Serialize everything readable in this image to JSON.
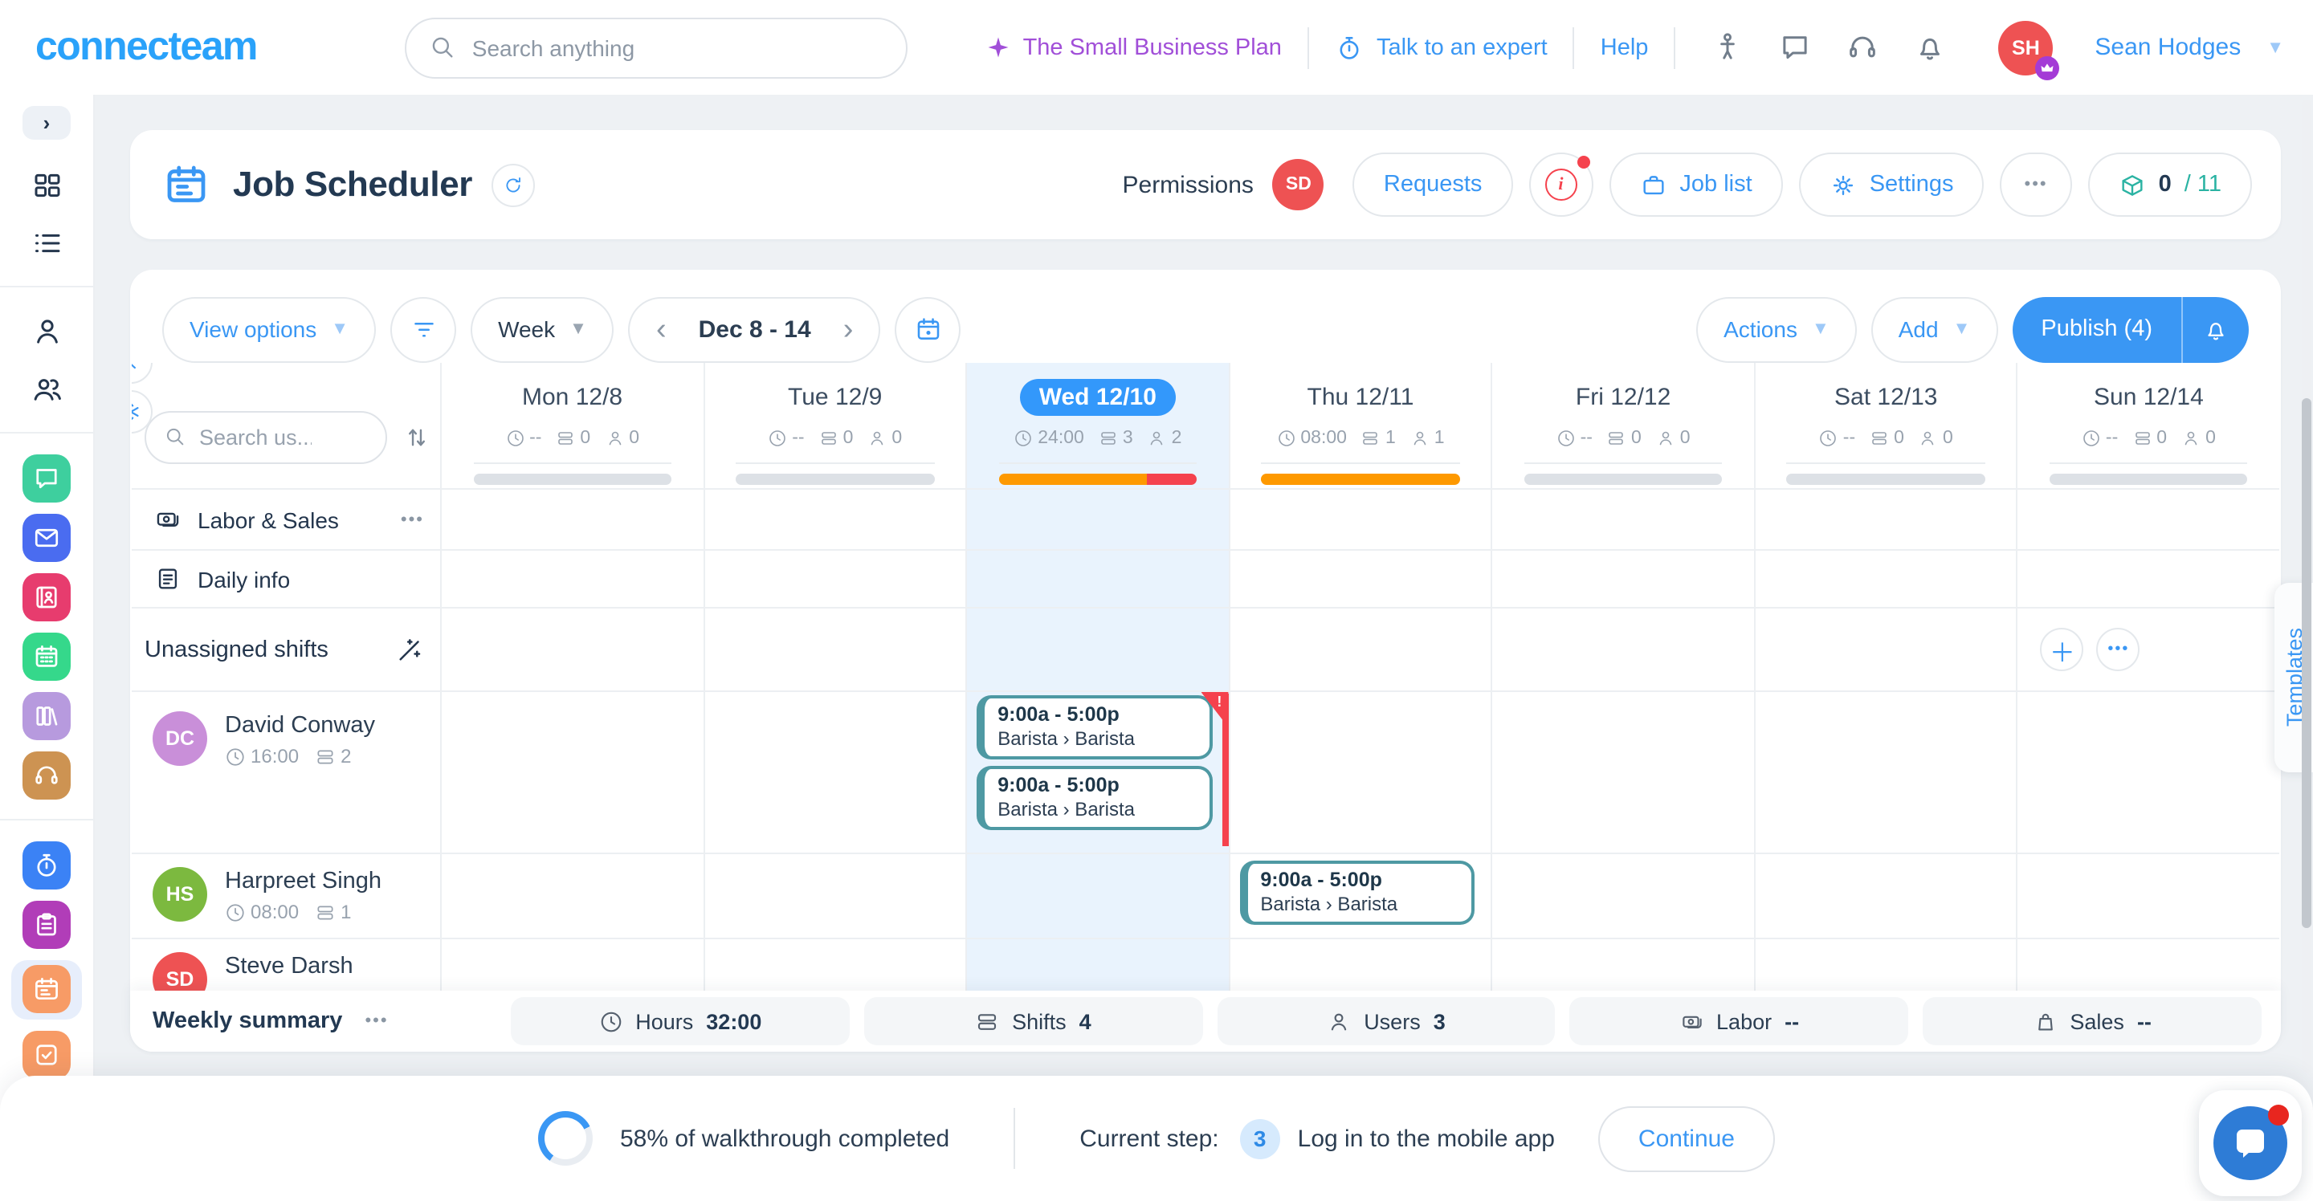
{
  "brand": {
    "logo_text": "connecteam",
    "accent": "#3a97f4",
    "logo_color": "#2aa2fa"
  },
  "topbar": {
    "search_placeholder": "Search anything",
    "plan_link": "The Small Business Plan",
    "expert_link": "Talk to an expert",
    "help_link": "Help",
    "user": {
      "initials": "SH",
      "name": "Sean Hodges",
      "avatar_color": "#ee5253",
      "badge_color": "#a43bd6"
    }
  },
  "page_header": {
    "title": "Job Scheduler",
    "permissions_label": "Permissions",
    "permissions_avatar": {
      "initials": "SD",
      "color": "#ee5253"
    },
    "requests_button": "Requests",
    "job_list_button": "Job list",
    "settings_button": "Settings",
    "more_button": "•••",
    "onboarding": {
      "count": "0",
      "total": "/ 11",
      "icon_color": "#2bb3a3"
    }
  },
  "toolbar": {
    "view_options": "View options",
    "zoom_level": "Week",
    "date_range": "Dec 8 - 14",
    "actions": "Actions",
    "add": "Add",
    "publish": "Publish (4)"
  },
  "grid": {
    "user_search_placeholder": "Search us...",
    "days": [
      {
        "label": "Mon 12/8",
        "hours": "--",
        "shifts": "0",
        "users": "0",
        "selected": false,
        "bar": [
          {
            "color": "#dde1e6",
            "width": "100%"
          }
        ]
      },
      {
        "label": "Tue 12/9",
        "hours": "--",
        "shifts": "0",
        "users": "0",
        "selected": false,
        "bar": [
          {
            "color": "#dde1e6",
            "width": "100%"
          }
        ]
      },
      {
        "label": "Wed 12/10",
        "hours": "24:00",
        "shifts": "3",
        "users": "2",
        "selected": true,
        "bar": [
          {
            "color": "#fe9900",
            "width": "75%"
          },
          {
            "color": "#f5424d",
            "width": "25%"
          }
        ]
      },
      {
        "label": "Thu 12/11",
        "hours": "08:00",
        "shifts": "1",
        "users": "1",
        "selected": false,
        "bar": [
          {
            "color": "#fe9900",
            "width": "100%"
          }
        ]
      },
      {
        "label": "Fri 12/12",
        "hours": "--",
        "shifts": "0",
        "users": "0",
        "selected": false,
        "bar": [
          {
            "color": "#dde1e6",
            "width": "100%"
          }
        ]
      },
      {
        "label": "Sat 12/13",
        "hours": "--",
        "shifts": "0",
        "users": "0",
        "selected": false,
        "bar": [
          {
            "color": "#dde1e6",
            "width": "100%"
          }
        ]
      },
      {
        "label": "Sun 12/14",
        "hours": "--",
        "shifts": "0",
        "users": "0",
        "selected": false,
        "bar": [
          {
            "color": "#dde1e6",
            "width": "100%"
          }
        ]
      }
    ],
    "section_rows": {
      "labor": "Labor & Sales",
      "labor_more": "•••",
      "daily": "Daily info",
      "unassigned": "Unassigned shifts"
    },
    "users": [
      {
        "initials": "DC",
        "name": "David Conway",
        "hours": "16:00",
        "shifts": "2",
        "color": "#c98fd9"
      },
      {
        "initials": "HS",
        "name": "Harpreet Singh",
        "hours": "08:00",
        "shifts": "1",
        "color": "#7cb93f"
      },
      {
        "initials": "SD",
        "name": "Steve Darsh",
        "hours": "",
        "shifts": "",
        "color": "#ee5253"
      }
    ],
    "shift": {
      "time": "9:00a - 5:00p",
      "role": "Barista › Barista",
      "border_color": "#4e99a3",
      "conflict_color": "#f5424d",
      "conflict_mark": "!"
    }
  },
  "summary": {
    "title": "Weekly summary",
    "more": "•••",
    "items": [
      {
        "label": "Hours",
        "value": "32:00"
      },
      {
        "label": "Shifts",
        "value": "4"
      },
      {
        "label": "Users",
        "value": "3"
      },
      {
        "label": "Labor",
        "value": "--"
      },
      {
        "label": "Sales",
        "value": "--"
      }
    ]
  },
  "walkthrough": {
    "progress_pct": 58,
    "progress_text": "58% of walkthrough completed",
    "step_label": "Current step:",
    "step_number": "3",
    "step_text": "Log in to the mobile app",
    "continue_button": "Continue"
  },
  "templates_tab": "Templates",
  "sidebar": {
    "items": [
      {
        "name": "chat",
        "color": "#3ecf9e"
      },
      {
        "name": "mail",
        "color": "#4a6cf0"
      },
      {
        "name": "directory",
        "color": "#e73c6e"
      },
      {
        "name": "schedule",
        "color": "#35d88b"
      },
      {
        "name": "knowledge",
        "color": "#b79ade"
      },
      {
        "name": "support",
        "color": "#cd9352"
      },
      {
        "name": "time-clock",
        "color": "#3b82f5"
      },
      {
        "name": "checklists",
        "color": "#b13db8"
      },
      {
        "name": "job-scheduler",
        "color": "#f79b66",
        "active": true
      },
      {
        "name": "forms",
        "color": "#f79b66"
      }
    ]
  }
}
